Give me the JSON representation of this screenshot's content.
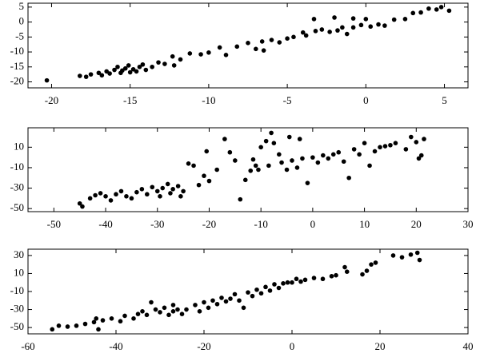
{
  "chart_data": [
    {
      "type": "scatter",
      "color": "#000000",
      "xlim": [
        -21.5,
        6.5
      ],
      "ylim": [
        -22,
        6.3
      ],
      "xticks": [
        -20,
        -15,
        -10,
        -5,
        0,
        5
      ],
      "yticks": [
        5,
        0,
        -5,
        -10,
        -15,
        -20
      ],
      "x": [
        -20.3,
        -18.2,
        -17.8,
        -17.5,
        -17,
        -16.8,
        -16.5,
        -16.3,
        -16,
        -15.8,
        -15.6,
        -15.5,
        -15.3,
        -15.1,
        -15,
        -14.8,
        -14.6,
        -14.4,
        -14.2,
        -14,
        -13.6,
        -13.2,
        -12.8,
        -12.3,
        -11.8,
        -11.2,
        -10.5,
        -10,
        -9.3,
        -8.9,
        -8.2,
        -7.5,
        -7,
        -6.6,
        -6,
        -5.5,
        -5,
        -4.6,
        -4,
        -3.8,
        -3.2,
        -2.8,
        -2.3,
        -1.8,
        -1.5,
        -1.2,
        -0.8,
        -0.3,
        0,
        0.3,
        0.8,
        1.2,
        1.8,
        2.5,
        3,
        3.5,
        4,
        4.5,
        4.8,
        5.3,
        -3.3,
        -2,
        -0.8,
        -6.5,
        -12.2
      ],
      "values": [
        -19.5,
        -18,
        -18.3,
        -17.5,
        -17,
        -17.8,
        -16.5,
        -17.2,
        -16,
        -15,
        -17,
        -16.2,
        -15.5,
        -14.5,
        -16.8,
        -15.8,
        -16.5,
        -15,
        -14.2,
        -16,
        -15,
        -13.5,
        -14,
        -11.5,
        -12.5,
        -10.5,
        -10.8,
        -10.2,
        -8.5,
        -11,
        -8.2,
        -7,
        -9,
        -6.5,
        -6,
        -6.8,
        -5.5,
        -5,
        -3.5,
        -4.5,
        -3,
        -2.5,
        -3.3,
        -2.8,
        -1.8,
        -4,
        -1.8,
        -1,
        1,
        -1.5,
        -0.8,
        -1.2,
        0.8,
        1,
        3,
        3.2,
        4.5,
        4.2,
        5,
        3.8,
        1,
        1.5,
        1.2,
        -9.5,
        -14.5
      ]
    },
    {
      "type": "scatter",
      "color": "#000000",
      "xlim": [
        -55,
        30
      ],
      "ylim": [
        -53,
        29
      ],
      "xticks": [
        -50,
        -40,
        -30,
        -20,
        -10,
        0,
        10,
        20,
        30
      ],
      "yticks": [
        10,
        -10,
        -30,
        -50
      ],
      "x": [
        -45,
        -44.5,
        -43,
        -42,
        -41,
        -40,
        -39,
        -38,
        -37,
        -36,
        -35,
        -34,
        -33,
        -32,
        -31,
        -30,
        -29.5,
        -29,
        -28,
        -27.5,
        -27,
        -26,
        -25.5,
        -25,
        -24,
        -23,
        -22,
        -21,
        -20,
        -18.5,
        -17,
        -16,
        -15,
        -14,
        -13,
        -12,
        -11.5,
        -11,
        -10,
        -9,
        -8.5,
        -8,
        -7.5,
        -6.5,
        -6,
        -5,
        -4.5,
        -4,
        -3,
        -2,
        -1,
        0,
        1,
        2,
        3,
        4,
        5,
        6,
        7,
        8,
        9,
        10,
        11,
        12,
        13,
        14,
        15,
        16,
        18,
        19,
        20,
        21,
        20.5,
        21.5,
        -2.5,
        -10.5,
        -20.5
      ],
      "values": [
        -45,
        -48,
        -40,
        -37,
        -35,
        -38,
        -42,
        -36,
        -33,
        -38,
        -40,
        -34,
        -31,
        -36,
        -29,
        -33,
        -38,
        -30,
        -26,
        -35,
        -31,
        -28,
        -38,
        -33,
        -6,
        -8,
        -27,
        -18,
        -23,
        -12,
        18,
        5,
        -3,
        -41,
        -22,
        -13,
        -2,
        -8,
        10,
        16,
        -8,
        24,
        14,
        3,
        -5,
        -12,
        20,
        -3,
        -10,
        -1,
        -25,
        0,
        -5,
        2,
        -1,
        3,
        5,
        -4,
        -20,
        8,
        3,
        14,
        -8,
        6,
        10,
        11,
        12,
        14,
        8,
        20,
        15,
        2,
        -1,
        18,
        18,
        -12,
        6
      ]
    },
    {
      "type": "scatter",
      "color": "#000000",
      "xlim": [
        -60,
        40
      ],
      "ylim": [
        -57,
        37
      ],
      "xticks": [
        -60,
        -40,
        -20,
        0,
        20,
        40
      ],
      "yticks": [
        30,
        10,
        -10,
        -30,
        -50
      ],
      "x": [
        -54.5,
        -53,
        -51,
        -49,
        -47,
        -45,
        -44,
        -43,
        -41,
        -39,
        -38,
        -36,
        -35,
        -34,
        -33,
        -31,
        -30,
        -29,
        -28,
        -27,
        -26,
        -25,
        -24,
        -22,
        -21,
        -20,
        -19,
        -18,
        -17,
        -16,
        -15,
        -14,
        -13,
        -12,
        -11,
        -10,
        -9,
        -8,
        -7,
        -6,
        -5,
        -4,
        -3,
        -2,
        -1,
        0,
        1,
        2,
        3,
        5,
        7,
        9,
        10,
        12,
        12.5,
        16,
        17,
        18,
        19,
        23,
        25,
        27,
        28.5,
        29,
        -32,
        -27,
        -44.5
      ],
      "values": [
        -52,
        -48,
        -49,
        -48,
        -46,
        -44,
        -52,
        -42,
        -40,
        -43,
        -37,
        -40,
        -35,
        -32,
        -36,
        -30,
        -33,
        -28,
        -36,
        -32,
        -30,
        -35,
        -30,
        -25,
        -32,
        -22,
        -28,
        -20,
        -24,
        -17,
        -21,
        -18,
        -13,
        -20,
        -28,
        -11,
        -15,
        -8,
        -12,
        -5,
        -9,
        -2,
        -6,
        -1,
        0,
        0,
        4,
        1,
        3,
        5,
        4,
        7,
        8,
        17,
        12,
        9,
        13,
        20,
        22,
        30,
        28,
        31,
        33,
        25,
        -22,
        -25,
        -40
      ]
    }
  ]
}
